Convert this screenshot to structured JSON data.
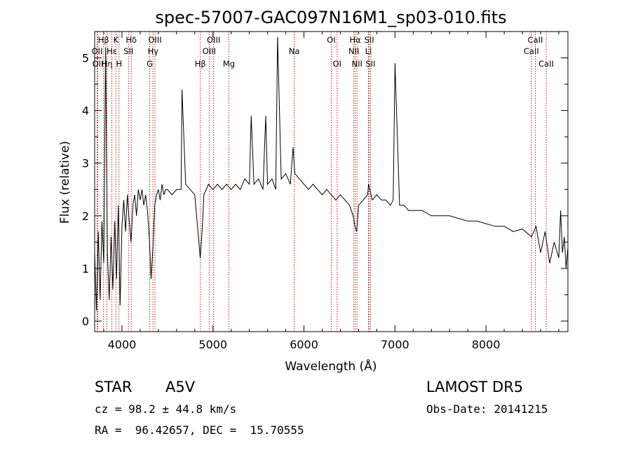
{
  "chart_data": {
    "type": "line",
    "title": "spec-57007-GAC097N16M1_sp03-010.fits",
    "xlabel": "Wavelength (Å)",
    "ylabel": "Flux (relative)",
    "xlim": [
      3700,
      8900
    ],
    "ylim": [
      -0.2,
      5.5
    ],
    "xticks": [
      4000,
      5000,
      6000,
      7000,
      8000
    ],
    "yticks": [
      0,
      1,
      2,
      3,
      4,
      5
    ],
    "grid": false,
    "legend": "none",
    "line_color": "#000000",
    "marker_color": "#b22222",
    "spectral_lines": [
      {
        "label": "Hβ",
        "x": 3798,
        "row": 0
      },
      {
        "label": "K",
        "x": 3934,
        "row": 0
      },
      {
        "label": "Hδ",
        "x": 4102,
        "row": 0
      },
      {
        "label": "OIII",
        "x": 4363,
        "row": 0
      },
      {
        "label": "OIII",
        "x": 5007,
        "row": 0
      },
      {
        "label": "Na",
        "x": 5893,
        "row": 1
      },
      {
        "label": "OI",
        "x": 6300,
        "row": 0
      },
      {
        "label": "Hα",
        "x": 6563,
        "row": 0
      },
      {
        "label": "SII",
        "x": 6717,
        "row": 0
      },
      {
        "label": "CaII",
        "x": 8542,
        "row": 0
      },
      {
        "label": "OII",
        "x": 3727,
        "row": 1
      },
      {
        "label": "Hε",
        "x": 3889,
        "row": 1
      },
      {
        "label": "SII",
        "x": 4072,
        "row": 1
      },
      {
        "label": "Hγ",
        "x": 4341,
        "row": 1
      },
      {
        "label": "OIII",
        "x": 4959,
        "row": 1
      },
      {
        "label": "NII",
        "x": 6548,
        "row": 1
      },
      {
        "label": "Li",
        "x": 6708,
        "row": 1
      },
      {
        "label": "CaII",
        "x": 8498,
        "row": 1
      },
      {
        "label": "OII",
        "x": 3735,
        "row": 2
      },
      {
        "label": "Hη",
        "x": 3835,
        "row": 2
      },
      {
        "label": "H",
        "x": 3968,
        "row": 2
      },
      {
        "label": "G",
        "x": 4305,
        "row": 2
      },
      {
        "label": "Hβ",
        "x": 4861,
        "row": 2
      },
      {
        "label": "Mg",
        "x": 5175,
        "row": 2
      },
      {
        "label": "OI",
        "x": 6364,
        "row": 2
      },
      {
        "label": "NII",
        "x": 6583,
        "row": 2
      },
      {
        "label": "SII",
        "x": 6731,
        "row": 2
      },
      {
        "label": "CaII",
        "x": 8662,
        "row": 2
      }
    ],
    "series": [
      {
        "x": [
          3700,
          3720,
          3740,
          3760,
          3780,
          3800,
          3820,
          3840,
          3860,
          3880,
          3900,
          3920,
          3940,
          3960,
          3980,
          4000,
          4020,
          4040,
          4060,
          4080,
          4100,
          4120,
          4140,
          4160,
          4180,
          4200,
          4220,
          4240,
          4260,
          4280,
          4300,
          4320,
          4340,
          4360,
          4380,
          4400,
          4420,
          4440,
          4460,
          4480,
          4500,
          4550,
          4600,
          4650,
          4660,
          4700,
          4750,
          4800,
          4820,
          4840,
          4860,
          4880,
          4900,
          4950,
          5000,
          5050,
          5100,
          5150,
          5200,
          5250,
          5300,
          5350,
          5400,
          5420,
          5450,
          5500,
          5550,
          5580,
          5600,
          5650,
          5690,
          5710,
          5750,
          5800,
          5850,
          5880,
          5900,
          5950,
          6000,
          6050,
          6100,
          6150,
          6200,
          6250,
          6300,
          6350,
          6400,
          6450,
          6500,
          6540,
          6560,
          6580,
          6600,
          6650,
          6700,
          6710,
          6750,
          6800,
          6850,
          6900,
          6950,
          6980,
          7000,
          7050,
          7100,
          7150,
          7200,
          7300,
          7400,
          7500,
          7600,
          7700,
          7800,
          7900,
          8000,
          8100,
          8200,
          8300,
          8400,
          8500,
          8550,
          8600,
          8650,
          8700,
          8750,
          8800,
          8820,
          8840,
          8860,
          8880,
          8900
        ],
        "values": [
          1.3,
          0.2,
          1.7,
          0.4,
          1.9,
          1.1,
          5.2,
          1.3,
          0.4,
          1.6,
          0.6,
          1.9,
          0.8,
          2.2,
          0.3,
          1.8,
          2.3,
          1.7,
          2.4,
          1.9,
          1.5,
          2.2,
          2.4,
          2.0,
          2.5,
          2.3,
          2.5,
          2.2,
          2.4,
          2.1,
          1.6,
          0.8,
          1.4,
          2.2,
          2.4,
          2.5,
          2.3,
          2.6,
          2.4,
          2.5,
          2.5,
          2.4,
          2.5,
          2.5,
          4.4,
          2.6,
          2.5,
          2.4,
          2.0,
          1.6,
          1.2,
          1.7,
          2.4,
          2.6,
          2.5,
          2.6,
          2.5,
          2.6,
          2.5,
          2.6,
          2.5,
          2.7,
          2.6,
          3.9,
          2.6,
          2.7,
          2.5,
          3.9,
          2.6,
          2.7,
          2.5,
          5.4,
          2.7,
          2.8,
          2.6,
          3.3,
          2.8,
          2.7,
          2.6,
          2.5,
          2.6,
          2.5,
          2.4,
          2.5,
          2.4,
          2.3,
          2.4,
          2.3,
          2.2,
          2.0,
          1.8,
          1.7,
          2.2,
          2.3,
          2.4,
          2.6,
          2.3,
          2.4,
          2.3,
          2.3,
          2.2,
          2.3,
          4.9,
          2.2,
          2.2,
          2.1,
          2.1,
          2.1,
          2.0,
          2.0,
          2.0,
          1.95,
          1.9,
          1.9,
          1.85,
          1.8,
          1.8,
          1.7,
          1.75,
          1.6,
          1.8,
          1.3,
          1.7,
          1.1,
          1.5,
          1.2,
          2.1,
          1.3,
          1.6,
          1.0,
          1.4
        ]
      }
    ]
  },
  "info": {
    "object_class": "STAR",
    "subclass": "A5V",
    "survey": "LAMOST DR5",
    "redshift": "cz = 98.2 ± 44.8 km/s",
    "obs_date": "Obs-Date: 20141215",
    "coords": "RA =  96.42657, DEC =  15.70555"
  }
}
